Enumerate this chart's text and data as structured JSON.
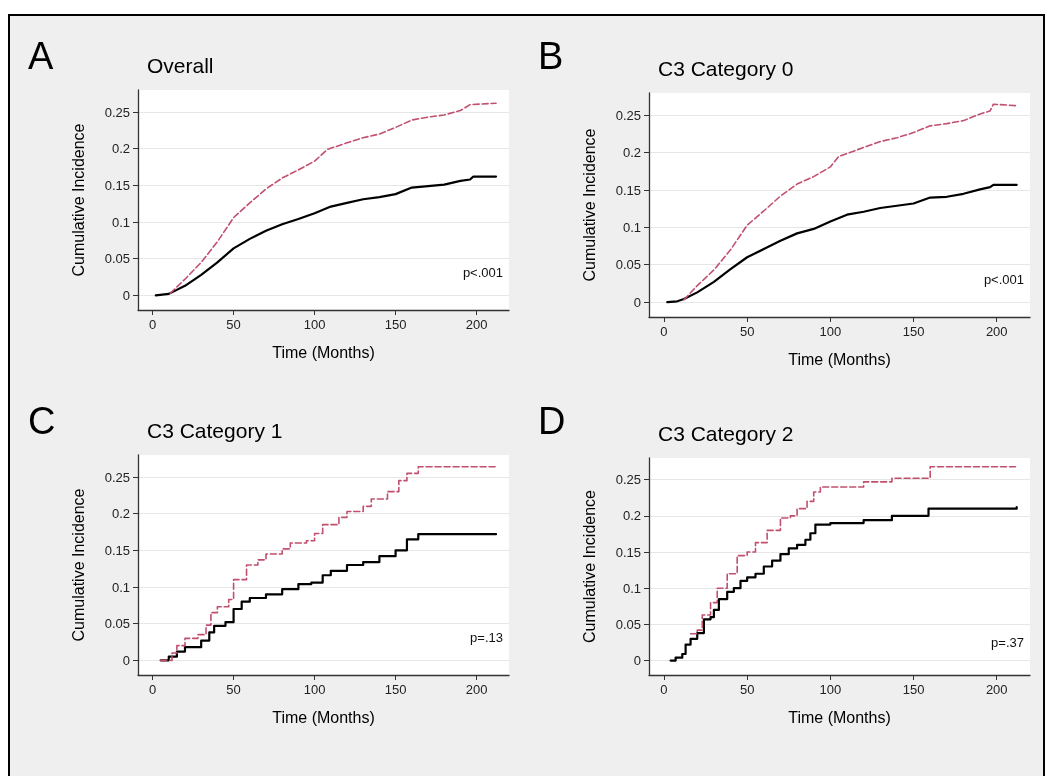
{
  "chart_data": [
    {
      "type": "line",
      "title": "Overall",
      "xlabel": "Time (Months)",
      "ylabel": "Cumulative Incidence",
      "annotations": [
        "A",
        "p<.001"
      ],
      "xlim": [
        -9,
        220
      ],
      "xticks": [
        0,
        50,
        100,
        150,
        200
      ],
      "ylim": [
        -0.02,
        0.28
      ],
      "yticks": [
        0,
        0.05,
        0.1,
        0.15,
        0.2,
        0.25
      ],
      "grid": "y",
      "series": [
        {
          "color": "#000000",
          "line_style": "solid",
          "x": [
            2,
            10,
            20,
            30,
            40,
            50,
            60,
            70,
            80,
            90,
            100,
            110,
            120,
            130,
            140,
            150,
            160,
            170,
            180,
            190,
            196,
            198,
            212
          ],
          "values": [
            0,
            0.002,
            0.013,
            0.028,
            0.045,
            0.064,
            0.077,
            0.088,
            0.097,
            0.104,
            0.112,
            0.121,
            0.126,
            0.131,
            0.134,
            0.138,
            0.147,
            0.149,
            0.151,
            0.156,
            0.158,
            0.162,
            0.162
          ]
        },
        {
          "color": "#c0506e",
          "line_style": "dashed",
          "x": [
            11,
            20,
            30,
            40,
            50,
            60,
            70,
            80,
            90,
            100,
            108,
            120,
            130,
            140,
            150,
            160,
            170,
            180,
            190,
            196,
            212
          ],
          "values": [
            0.003,
            0.022,
            0.045,
            0.073,
            0.106,
            0.126,
            0.145,
            0.16,
            0.171,
            0.183,
            0.199,
            0.208,
            0.215,
            0.22,
            0.229,
            0.239,
            0.243,
            0.246,
            0.252,
            0.26,
            0.262
          ]
        }
      ]
    },
    {
      "type": "line",
      "title": "C3 Category 0",
      "xlabel": "Time (Months)",
      "ylabel": "Cumulative Incidence",
      "annotations": [
        "B",
        "p<.001"
      ],
      "xlim": [
        -9,
        220
      ],
      "xticks": [
        0,
        50,
        100,
        150,
        200
      ],
      "ylim": [
        -0.02,
        0.28
      ],
      "yticks": [
        0,
        0.05,
        0.1,
        0.15,
        0.2,
        0.25
      ],
      "grid": "y",
      "series": [
        {
          "color": "#000000",
          "line_style": "solid",
          "x": [
            2,
            8,
            12,
            20,
            30,
            40,
            50,
            60,
            70,
            80,
            90,
            100,
            110,
            120,
            130,
            140,
            150,
            160,
            170,
            180,
            190,
            196,
            198,
            212
          ],
          "values": [
            0,
            0.001,
            0.004,
            0.013,
            0.027,
            0.044,
            0.06,
            0.071,
            0.082,
            0.092,
            0.098,
            0.108,
            0.117,
            0.121,
            0.126,
            0.129,
            0.132,
            0.14,
            0.141,
            0.145,
            0.151,
            0.154,
            0.157,
            0.157
          ]
        },
        {
          "color": "#c0506e",
          "line_style": "dashed",
          "x": [
            12,
            20,
            30,
            40,
            50,
            60,
            70,
            80,
            90,
            100,
            105,
            120,
            130,
            140,
            150,
            160,
            170,
            180,
            190,
            196,
            198,
            212
          ],
          "values": [
            0.003,
            0.022,
            0.043,
            0.07,
            0.103,
            0.122,
            0.142,
            0.158,
            0.168,
            0.181,
            0.195,
            0.207,
            0.215,
            0.22,
            0.227,
            0.236,
            0.239,
            0.243,
            0.252,
            0.256,
            0.265,
            0.263
          ]
        }
      ]
    },
    {
      "type": "step",
      "title": "C3 Category 1",
      "xlabel": "Time (Months)",
      "ylabel": "Cumulative Incidence",
      "annotations": [
        "C",
        "p=.13"
      ],
      "xlim": [
        -9,
        220
      ],
      "xticks": [
        0,
        50,
        100,
        150,
        200
      ],
      "ylim": [
        -0.02,
        0.28
      ],
      "yticks": [
        0,
        0.05,
        0.1,
        0.15,
        0.2,
        0.25
      ],
      "grid": "y",
      "series": [
        {
          "color": "#000000",
          "line_style": "solid",
          "x": [
            5,
            10,
            15,
            20,
            30,
            35,
            38,
            45,
            50,
            55,
            60,
            70,
            80,
            90,
            98,
            105,
            110,
            120,
            130,
            140,
            150,
            157,
            164,
            212
          ],
          "values": [
            0,
            0.005,
            0.012,
            0.018,
            0.027,
            0.038,
            0.047,
            0.052,
            0.07,
            0.08,
            0.085,
            0.09,
            0.097,
            0.104,
            0.106,
            0.116,
            0.122,
            0.13,
            0.134,
            0.142,
            0.15,
            0.165,
            0.172,
            0.172
          ]
        },
        {
          "color": "#c0506e",
          "line_style": "dashed",
          "x": [
            5,
            12,
            15,
            20,
            28,
            33,
            36,
            40,
            47,
            50,
            58,
            65,
            70,
            80,
            85,
            95,
            100,
            105,
            115,
            120,
            130,
            135,
            145,
            152,
            157,
            164,
            212
          ],
          "values": [
            0,
            0.01,
            0.02,
            0.03,
            0.035,
            0.048,
            0.065,
            0.073,
            0.083,
            0.11,
            0.13,
            0.137,
            0.145,
            0.152,
            0.16,
            0.163,
            0.173,
            0.185,
            0.195,
            0.203,
            0.21,
            0.22,
            0.23,
            0.245,
            0.255,
            0.264,
            0.264
          ]
        }
      ]
    },
    {
      "type": "step",
      "title": "C3 Category 2",
      "xlabel": "Time (Months)",
      "ylabel": "Cumulative Incidence",
      "annotations": [
        "D",
        "p=.37"
      ],
      "xlim": [
        -9,
        220
      ],
      "xticks": [
        0,
        50,
        100,
        150,
        200
      ],
      "ylim": [
        -0.02,
        0.28
      ],
      "yticks": [
        0,
        0.05,
        0.1,
        0.15,
        0.2,
        0.25
      ],
      "grid": "y",
      "series": [
        {
          "color": "#000000",
          "line_style": "solid",
          "x": [
            4,
            7,
            11,
            13,
            16,
            20,
            24,
            28,
            30,
            33,
            38,
            42,
            46,
            50,
            55,
            60,
            65,
            70,
            75,
            80,
            85,
            88,
            91,
            100,
            120,
            137,
            159,
            212
          ],
          "values": [
            0,
            0.004,
            0.009,
            0.022,
            0.03,
            0.038,
            0.057,
            0.06,
            0.07,
            0.085,
            0.095,
            0.1,
            0.11,
            0.115,
            0.12,
            0.13,
            0.138,
            0.147,
            0.155,
            0.16,
            0.167,
            0.176,
            0.188,
            0.19,
            0.194,
            0.2,
            0.21,
            0.212
          ]
        },
        {
          "color": "#c0506e",
          "line_style": "dashed",
          "x": [
            16,
            20,
            23,
            28,
            32,
            38,
            44,
            50,
            55,
            62,
            70,
            76,
            80,
            86,
            90,
            94,
            120,
            137,
            160,
            212
          ],
          "values": [
            0.037,
            0.042,
            0.063,
            0.08,
            0.1,
            0.12,
            0.145,
            0.15,
            0.163,
            0.18,
            0.197,
            0.2,
            0.21,
            0.22,
            0.233,
            0.24,
            0.247,
            0.252,
            0.268,
            0.268
          ]
        }
      ]
    }
  ]
}
